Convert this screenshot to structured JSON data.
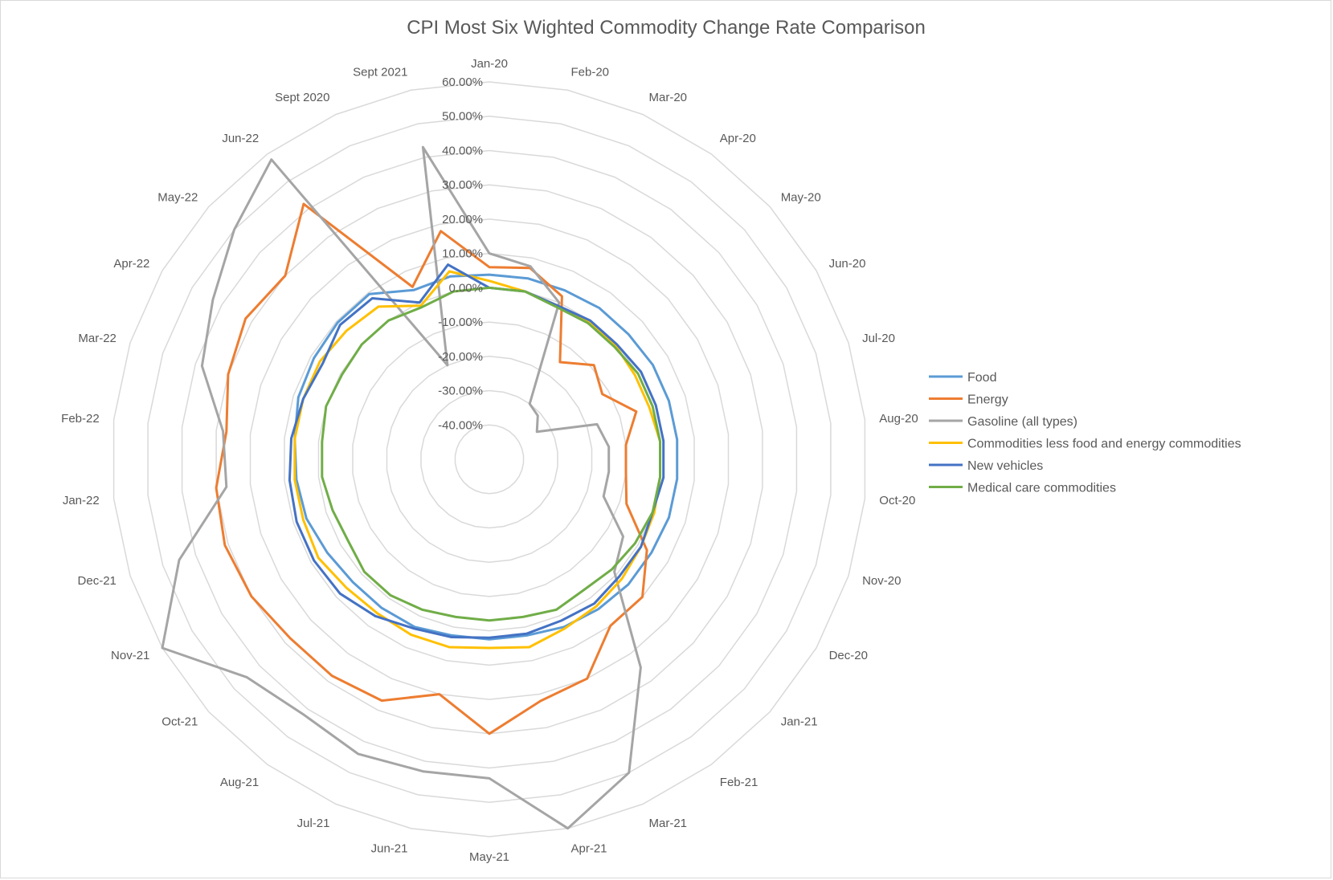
{
  "chart_data": {
    "type": "radar",
    "title": "CPI Most Six Wighted Commodity Change Rate Comparison",
    "categories": [
      "Jan-20",
      "Feb-20",
      "Mar-20",
      "Apr-20",
      "May-20",
      "Jun-20",
      "Jul-20",
      "Aug-20",
      "Oct-20",
      "Nov-20",
      "Dec-20",
      "Jan-21",
      "Feb-21",
      "Mar-21",
      "Apr-21",
      "May-21",
      "Jun-21",
      "Jul-21",
      "Aug-21",
      "Oct-21",
      "Nov-21",
      "Dec-21",
      "Jan-22",
      "Feb-22",
      "Mar-22",
      "Apr-22",
      "May-22",
      "Jun-22",
      "Sept 2020",
      "Sept 2021"
    ],
    "rlim": [
      -0.5,
      0.6
    ],
    "ticks": [
      {
        "value": -0.4,
        "label": "-40.00%"
      },
      {
        "value": -0.3,
        "label": "-30.00%"
      },
      {
        "value": -0.2,
        "label": "-20.00%"
      },
      {
        "value": -0.1,
        "label": "-10.00%"
      },
      {
        "value": 0.0,
        "label": "0.00%"
      },
      {
        "value": 0.1,
        "label": "10.00%"
      },
      {
        "value": 0.2,
        "label": "20.00%"
      },
      {
        "value": 0.3,
        "label": "30.00%"
      },
      {
        "value": 0.4,
        "label": "40.00%"
      },
      {
        "value": 0.5,
        "label": "50.00%"
      },
      {
        "value": 0.6,
        "label": "60.00%"
      }
    ],
    "grid": true,
    "legend_position": "right",
    "series": [
      {
        "name": "Food",
        "color": "#5B9BD5",
        "values": [
          0.038,
          0.039,
          0.039,
          0.045,
          0.045,
          0.05,
          0.05,
          0.05,
          0.05,
          0.05,
          0.045,
          0.045,
          0.04,
          0.035,
          0.025,
          0.025,
          0.025,
          0.035,
          0.035,
          0.035,
          0.045,
          0.06,
          0.065,
          0.07,
          0.085,
          0.09,
          0.095,
          0.095,
          0.04,
          0.045
        ]
      },
      {
        "name": "Energy",
        "color": "#ED7D31",
        "values": [
          0.06,
          0.07,
          0.02,
          -0.15,
          -0.09,
          -0.12,
          -0.05,
          -0.1,
          -0.1,
          -0.08,
          0.03,
          0.1,
          0.1,
          0.2,
          0.22,
          0.3,
          0.2,
          0.27,
          0.28,
          0.28,
          0.3,
          0.31,
          0.3,
          0.27,
          0.3,
          0.32,
          0.3,
          0.42,
          0.05,
          0.18
        ]
      },
      {
        "name": "Gasoline (all types)",
        "color": "#A5A5A5",
        "values": [
          0.1,
          0.075,
          0.0,
          -0.3,
          -0.31,
          -0.34,
          -0.17,
          -0.15,
          -0.15,
          -0.15,
          -0.05,
          -0.01,
          0.25,
          0.5,
          0.6,
          0.43,
          0.43,
          0.44,
          0.42,
          0.45,
          0.6,
          0.45,
          0.27,
          0.28,
          0.38,
          0.43,
          0.5,
          0.58,
          -0.2,
          0.43
        ]
      },
      {
        "name": "Commodities less food and energy commodities",
        "color": "#FFC000",
        "values": [
          0.02,
          0.0,
          -0.01,
          -0.005,
          -0.005,
          -0.01,
          -0.01,
          0.0,
          0.0,
          0.005,
          0.01,
          0.02,
          0.03,
          0.04,
          0.06,
          0.05,
          0.06,
          0.06,
          0.055,
          0.06,
          0.075,
          0.07,
          0.07,
          0.07,
          0.07,
          0.07,
          0.06,
          0.05,
          -0.01,
          0.06
        ]
      },
      {
        "name": "New vehicles",
        "color": "#4472C4",
        "values": [
          0.0,
          0.0,
          -0.01,
          0.0,
          0.0,
          0.01,
          0.01,
          0.01,
          0.01,
          0.0,
          0.01,
          0.01,
          0.02,
          0.015,
          0.02,
          0.02,
          0.03,
          0.04,
          0.065,
          0.085,
          0.09,
          0.09,
          0.085,
          0.08,
          0.07,
          0.06,
          0.085,
          0.08,
          0.0,
          0.08
        ]
      },
      {
        "name": "Medical care commodities",
        "color": "#70AD47",
        "values": [
          0.0,
          0.0,
          -0.015,
          -0.01,
          -0.01,
          0.0,
          0.0,
          0.0,
          0.0,
          0.0,
          -0.01,
          -0.02,
          -0.03,
          -0.02,
          -0.03,
          -0.03,
          -0.03,
          -0.02,
          -0.01,
          -0.01,
          -0.025,
          -0.02,
          -0.01,
          -0.01,
          0.0,
          -0.005,
          0.0,
          0.0,
          -0.015,
          0.0
        ]
      }
    ]
  }
}
